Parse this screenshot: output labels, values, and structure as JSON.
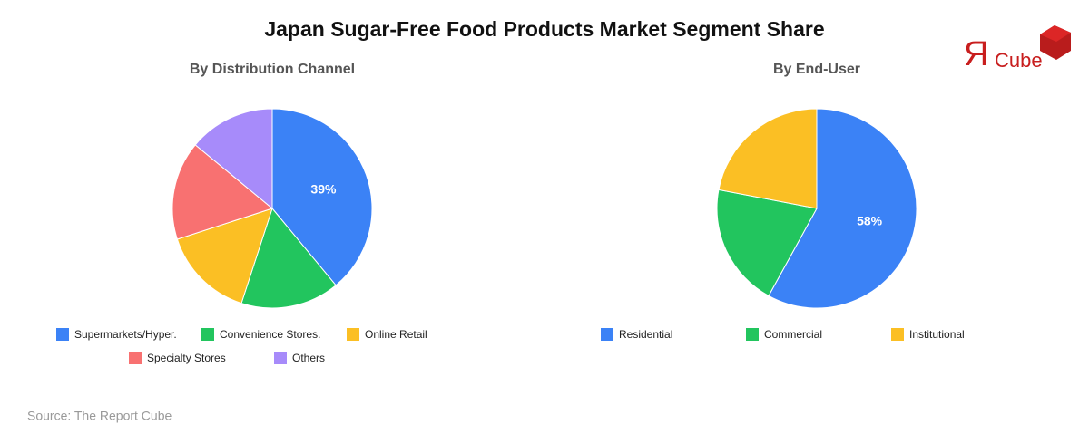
{
  "title": "Japan Sugar-Free Food Products Market Segment Share",
  "source": "Source: The Report Cube",
  "logo": {
    "mark": "Я",
    "text": "Cube"
  },
  "chart_data": [
    {
      "type": "pie",
      "title": "By Distribution Channel",
      "categories": [
        "Supermarkets/Hyper.",
        "Convenience Stores.",
        "Online Retail",
        "Specialty Stores",
        "Others"
      ],
      "values": [
        39,
        16,
        15,
        16,
        14
      ],
      "value_labels": [
        "39%",
        null,
        null,
        null,
        null
      ],
      "colors": [
        "#3b82f6",
        "#22c55e",
        "#fbbf24",
        "#f87171",
        "#a78bfa"
      ]
    },
    {
      "type": "pie",
      "title": "By End-User",
      "categories": [
        "Residential",
        "Commercial",
        "Institutional"
      ],
      "values": [
        58,
        20,
        22
      ],
      "value_labels": [
        "58%",
        null,
        null
      ],
      "colors": [
        "#3b82f6",
        "#22c55e",
        "#fbbf24"
      ]
    }
  ]
}
